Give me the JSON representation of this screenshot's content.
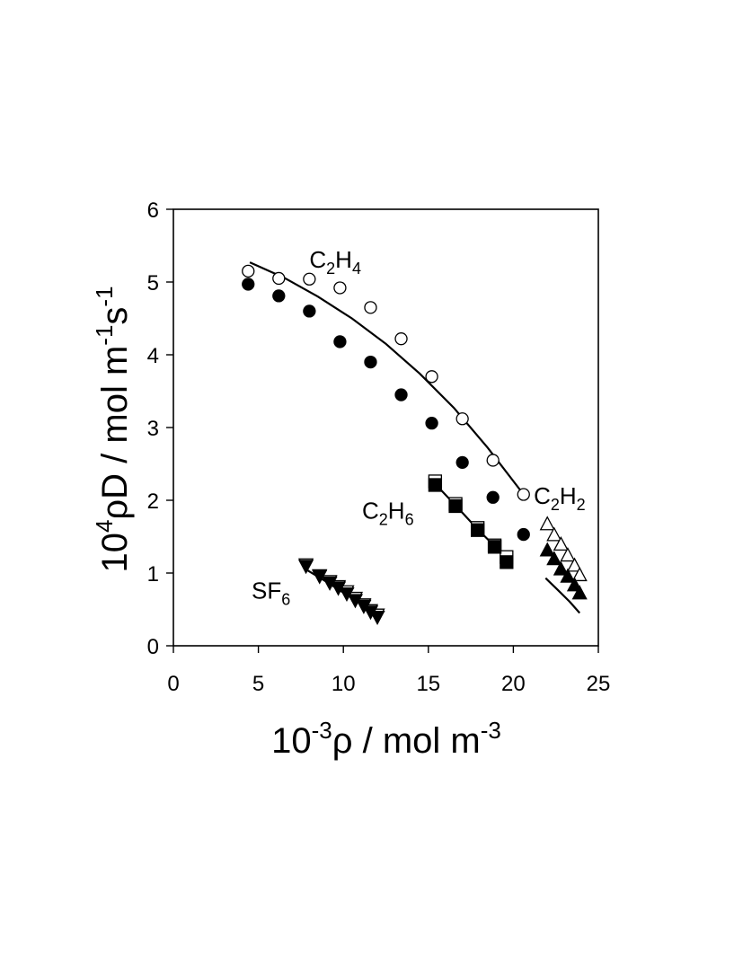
{
  "chart_data": {
    "type": "scatter",
    "title": "",
    "xlabel": {
      "base": "10",
      "exp": "-3",
      "rest": "ρ / mol m",
      "rest_exp": "-3"
    },
    "ylabel": {
      "base": "10",
      "exp": "4",
      "mid": "ρD / mol m",
      "mid_exp": "-1",
      "tail": "s",
      "tail_exp": "-1"
    },
    "xlim": [
      0,
      25
    ],
    "ylim": [
      0,
      6
    ],
    "xticks": [
      0,
      5,
      10,
      15,
      20,
      25
    ],
    "yticks": [
      0,
      1,
      2,
      3,
      4,
      5,
      6
    ],
    "grid": false,
    "legend": "none",
    "series_labels": [
      {
        "name": "C2H4",
        "parts": [
          "C",
          "2",
          "H",
          "4"
        ],
        "x": 8.0,
        "y": 5.2
      },
      {
        "name": "C2H6",
        "parts": [
          "C",
          "2",
          "H",
          "6"
        ],
        "x": 11.1,
        "y": 1.75
      },
      {
        "name": "C2H2",
        "parts": [
          "C",
          "2",
          "H",
          "2"
        ],
        "x": 21.2,
        "y": 1.95
      },
      {
        "name": "SF6",
        "parts": [
          "SF",
          "6"
        ],
        "x": 4.6,
        "y": 0.65
      }
    ],
    "series": [
      {
        "name": "C2H4",
        "marker": "circle",
        "fill": "open",
        "x": [
          4.4,
          6.2,
          8.0,
          9.8,
          11.6,
          13.4,
          15.2,
          17.0,
          18.8,
          20.6
        ],
        "y": [
          5.15,
          5.05,
          5.04,
          4.92,
          4.65,
          4.22,
          3.7,
          3.12,
          2.55,
          2.08
        ]
      },
      {
        "name": "C2H4",
        "marker": "circle",
        "fill": "filled",
        "x": [
          4.4,
          6.2,
          8.0,
          9.8,
          11.6,
          13.4,
          15.2,
          17.0,
          18.8,
          20.6
        ],
        "y": [
          4.97,
          4.81,
          4.6,
          4.18,
          3.9,
          3.45,
          3.06,
          2.52,
          2.04,
          1.53
        ]
      },
      {
        "name": "C2H6",
        "marker": "square",
        "fill": "open",
        "x": [
          15.4,
          16.6,
          17.9,
          18.9,
          19.6
        ],
        "y": [
          2.26,
          1.95,
          1.62,
          1.38,
          1.22
        ]
      },
      {
        "name": "C2H6",
        "marker": "square",
        "fill": "filled",
        "x": [
          15.4,
          16.6,
          17.9,
          18.9,
          19.6
        ],
        "y": [
          2.21,
          1.92,
          1.59,
          1.36,
          1.15
        ]
      },
      {
        "name": "C2H2",
        "marker": "triangle-up",
        "fill": "open",
        "x": [
          22.0,
          22.4,
          22.8,
          23.2,
          23.6,
          23.9
        ],
        "y": [
          1.67,
          1.52,
          1.39,
          1.24,
          1.1,
          0.97
        ]
      },
      {
        "name": "C2H2",
        "marker": "triangle-up",
        "fill": "filled",
        "x": [
          22.0,
          22.4,
          22.8,
          23.2,
          23.6,
          23.9
        ],
        "y": [
          1.31,
          1.19,
          1.05,
          0.95,
          0.83,
          0.72
        ]
      },
      {
        "name": "SF6",
        "marker": "triangle-down",
        "fill": "open",
        "x": [
          7.8,
          8.6,
          9.2,
          9.7,
          10.2,
          10.7,
          11.2,
          11.6,
          12.0
        ],
        "y": [
          1.12,
          0.97,
          0.89,
          0.82,
          0.75,
          0.66,
          0.57,
          0.49,
          0.43
        ]
      },
      {
        "name": "SF6",
        "marker": "triangle-down",
        "fill": "filled",
        "x": [
          7.8,
          8.6,
          9.2,
          9.7,
          10.2,
          10.7,
          11.2,
          11.6,
          12.0
        ],
        "y": [
          1.1,
          0.96,
          0.87,
          0.8,
          0.72,
          0.63,
          0.55,
          0.47,
          0.4
        ]
      }
    ],
    "lines": [
      {
        "name": "C2H4",
        "x": [
          4.5,
          6.5,
          8.5,
          10.5,
          12.5,
          14.5,
          16.5,
          18.5,
          20.6
        ],
        "y": [
          5.27,
          5.06,
          4.8,
          4.5,
          4.15,
          3.74,
          3.27,
          2.72,
          2.08
        ]
      },
      {
        "name": "C2H6",
        "x": [
          15.3,
          16.6,
          17.9,
          18.9,
          19.6
        ],
        "y": [
          2.25,
          1.93,
          1.6,
          1.37,
          1.22
        ]
      },
      {
        "name": "C2H2",
        "x": [
          21.9,
          22.6,
          23.3,
          23.9
        ],
        "y": [
          0.93,
          0.77,
          0.61,
          0.45
        ]
      },
      {
        "name": "SF6",
        "x": [
          7.8,
          9.0,
          10.2,
          11.2,
          12.0
        ],
        "y": [
          1.05,
          0.88,
          0.7,
          0.56,
          0.45
        ]
      }
    ]
  }
}
